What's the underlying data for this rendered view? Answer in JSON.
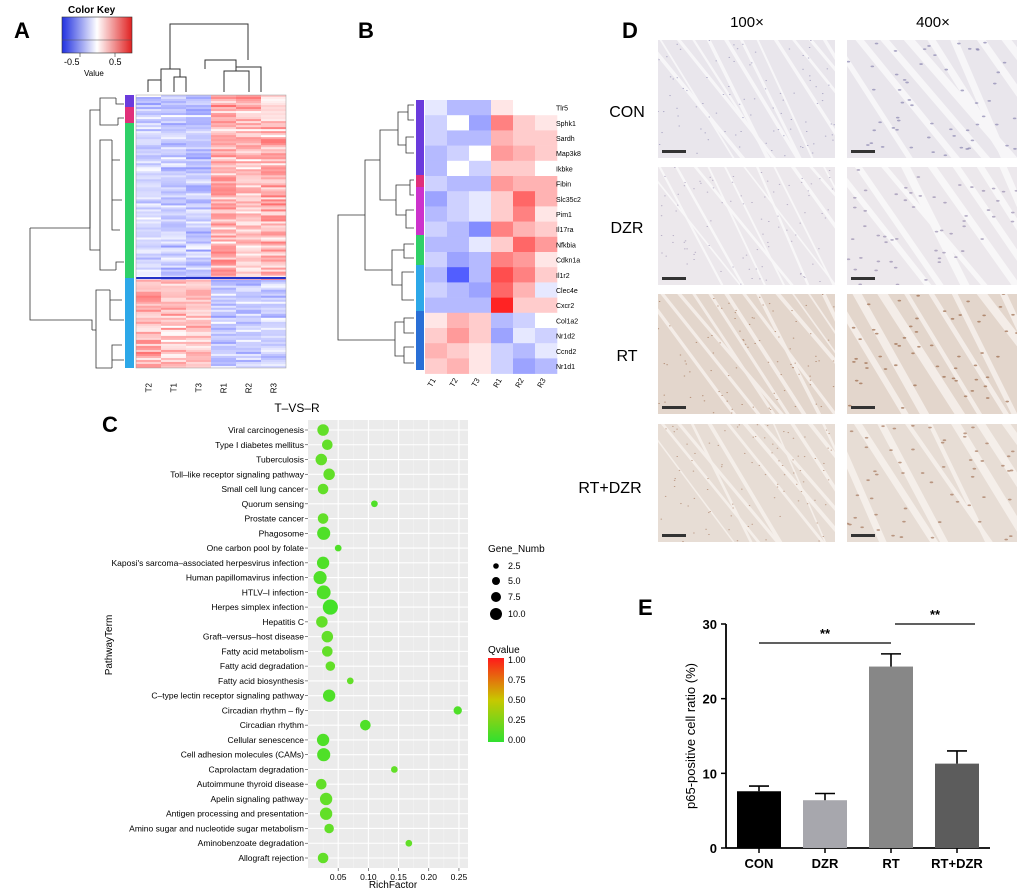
{
  "panels": {
    "A": {
      "letter": "A",
      "color_key": {
        "title": "Color Key",
        "ticks": [
          "-0.5",
          "0.5"
        ],
        "xlabel": "Value"
      },
      "columns": [
        "T2",
        "T1",
        "T3",
        "R1",
        "R2",
        "R3"
      ],
      "row_group_colors": [
        "#6a3bdc",
        "#e0307a",
        "#2fd068",
        "#2da8e8"
      ]
    },
    "B": {
      "letter": "B",
      "columns": [
        "T1",
        "T2",
        "T3",
        "R1",
        "R2",
        "R3"
      ],
      "genes": [
        "Tlr5",
        "Sphk1",
        "Sardh",
        "Map3k8",
        "Ikbke",
        "Fibin",
        "Slc35c2",
        "Pim1",
        "Il17ra",
        "Nfkbia",
        "Cdkn1a",
        "Il1r2",
        "Clec4e",
        "Cxcr2",
        "Col1a2",
        "Nr1d2",
        "Ccnd2",
        "Nr1d1"
      ],
      "values": [
        [
          -0.1,
          -0.3,
          -0.3,
          0.1,
          0.0,
          0.0
        ],
        [
          -0.2,
          0.0,
          -0.4,
          0.5,
          0.2,
          0.1
        ],
        [
          -0.2,
          -0.3,
          -0.3,
          0.3,
          0.2,
          0.2
        ],
        [
          -0.3,
          -0.2,
          0.0,
          0.4,
          0.3,
          0.2
        ],
        [
          -0.3,
          0.0,
          -0.2,
          0.2,
          0.2,
          0.0
        ],
        [
          -0.2,
          -0.3,
          -0.3,
          0.4,
          0.3,
          0.3
        ],
        [
          -0.4,
          -0.2,
          -0.1,
          0.2,
          0.6,
          0.3
        ],
        [
          -0.3,
          -0.2,
          -0.1,
          0.2,
          0.5,
          0.1
        ],
        [
          -0.2,
          -0.3,
          -0.5,
          0.5,
          0.3,
          0.2
        ],
        [
          -0.3,
          -0.3,
          -0.1,
          0.2,
          0.6,
          0.4
        ],
        [
          -0.2,
          -0.4,
          -0.3,
          0.5,
          0.4,
          0.1
        ],
        [
          -0.3,
          -0.7,
          -0.3,
          0.7,
          0.5,
          0.2
        ],
        [
          -0.2,
          -0.3,
          -0.4,
          0.6,
          0.3,
          -0.1
        ],
        [
          -0.3,
          -0.3,
          -0.3,
          0.9,
          0.2,
          0.2
        ],
        [
          0.1,
          0.3,
          0.2,
          -0.3,
          -0.2,
          0.0
        ],
        [
          0.2,
          0.4,
          0.2,
          -0.4,
          -0.1,
          -0.2
        ],
        [
          0.3,
          0.2,
          0.1,
          -0.2,
          -0.3,
          -0.1
        ],
        [
          0.2,
          0.3,
          0.1,
          -0.2,
          -0.4,
          -0.3
        ]
      ],
      "row_group_colors": [
        "#6a3bdc",
        "#e0307a",
        "#2fd068",
        "#2da8e8",
        "#2a6fd6"
      ]
    },
    "C": {
      "letter": "C",
      "chart_data": {
        "type": "scatter",
        "title": "T–VS–R",
        "xlabel": "RichFactor",
        "ylabel": "PathwayTerm",
        "xlim": [
          0,
          0.265
        ],
        "xticks": [
          "0.05",
          "0.10",
          "0.15",
          "0.20",
          "0.25"
        ],
        "xtick_values": [
          0.05,
          0.1,
          0.15,
          0.2,
          0.25
        ],
        "grid": true,
        "legend_placement": "right",
        "size_legend": {
          "title": "Gene_Numb",
          "values": [
            "2.5",
            "5.0",
            "7.5",
            "10.0"
          ]
        },
        "color_legend": {
          "title": "Qvalue",
          "ticks": [
            "1.00",
            "0.75",
            "0.50",
            "0.25",
            "0.00"
          ]
        },
        "terms": [
          "Viral carcinogenesis",
          "Type I diabetes mellitus",
          "Tuberculosis",
          "Toll–like receptor signaling pathway",
          "Small cell lung cancer",
          "Quorum sensing",
          "Prostate cancer",
          "Phagosome",
          "One carbon pool by folate",
          "Kaposi's sarcoma–associated herpesvirus infection",
          "Human papillomavirus infection",
          "HTLV–I infection",
          "Herpes simplex infection",
          "Hepatitis C",
          "Graft–versus–host disease",
          "Fatty acid metabolism",
          "Fatty acid degradation",
          "Fatty acid biosynthesis",
          "C–type lectin receptor signaling pathway",
          "Circadian rhythm – fly",
          "Circadian rhythm",
          "Cellular senescence",
          "Cell adhesion molecules (CAMs)",
          "Caprolactam degradation",
          "Autoimmune thyroid disease",
          "Apelin signaling pathway",
          "Antigen processing and presentation",
          "Amino sugar and nucleotide sugar metabolism",
          "Aminobenzoate degradation",
          "Allograft rejection"
        ],
        "rich_factor": [
          0.025,
          0.032,
          0.022,
          0.035,
          0.025,
          0.11,
          0.025,
          0.026,
          0.05,
          0.025,
          0.02,
          0.026,
          0.037,
          0.023,
          0.032,
          0.032,
          0.037,
          0.07,
          0.035,
          0.248,
          0.095,
          0.025,
          0.026,
          0.143,
          0.022,
          0.03,
          0.03,
          0.035,
          0.167,
          0.025
        ],
        "gene_number": [
          5,
          4,
          5,
          5,
          4,
          1,
          4,
          7,
          1,
          6,
          7,
          8,
          10,
          5,
          5,
          4,
          3,
          1,
          6,
          2,
          4,
          6,
          7,
          1,
          4,
          6,
          6,
          3,
          1,
          4
        ],
        "qvalue": [
          0.1,
          0.1,
          0.1,
          0.1,
          0.1,
          0.05,
          0.1,
          0.05,
          0.05,
          0.05,
          0.05,
          0.05,
          0.02,
          0.1,
          0.1,
          0.1,
          0.1,
          0.1,
          0.05,
          0.05,
          0.05,
          0.05,
          0.05,
          0.1,
          0.1,
          0.1,
          0.1,
          0.1,
          0.1,
          0.1
        ]
      }
    },
    "D": {
      "letter": "D",
      "col_labels": [
        "100×",
        "400×"
      ],
      "row_labels": [
        "CON",
        "DZR",
        "RT",
        "RT+DZR"
      ]
    },
    "E": {
      "letter": "E",
      "chart_data": {
        "type": "bar",
        "categories": [
          "CON",
          "DZR",
          "RT",
          "RT+DZR"
        ],
        "values": [
          7.6,
          6.4,
          24.3,
          11.3
        ],
        "errors": [
          0.7,
          0.9,
          1.7,
          1.7
        ],
        "colors": [
          "#000000",
          "#a7a7ad",
          "#878787",
          "#5c5c5c"
        ],
        "ylabel": "p65-positive cell ratio (%)",
        "ylim": [
          0,
          30
        ],
        "yticks": [
          "0",
          "10",
          "20",
          "30"
        ],
        "ytick_values": [
          0,
          10,
          20,
          30
        ],
        "significance": [
          {
            "from": 0,
            "to": 2,
            "label": "**"
          },
          {
            "from": 2,
            "to": 3,
            "label": "**"
          }
        ]
      }
    }
  }
}
